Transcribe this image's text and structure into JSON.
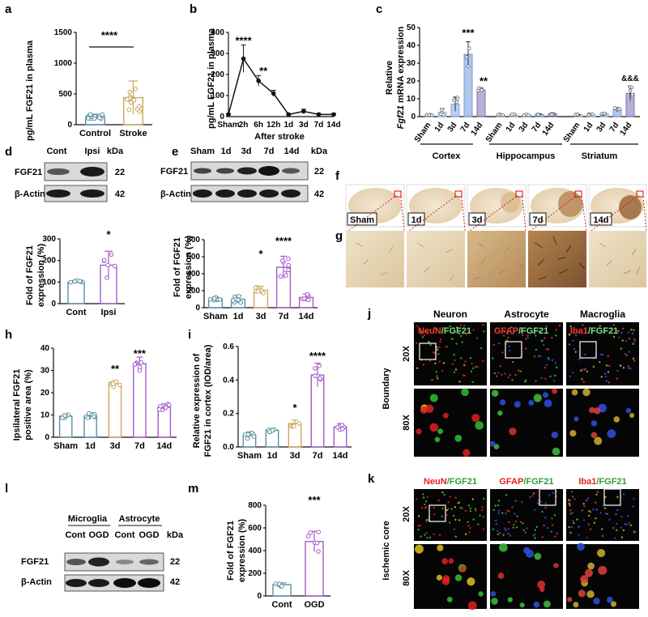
{
  "panels": {
    "a": {
      "letter": "a",
      "ylabel": "pg/mL FGF21 in plasma",
      "yticks": [
        "0",
        "500",
        "1000",
        "1500"
      ],
      "categories": [
        "Control",
        "Stroke"
      ],
      "sig": "****"
    },
    "b": {
      "letter": "b",
      "ylabel": "pg/mL FGF21 in plasma",
      "xlabel": "After stroke",
      "yticks": [
        "0",
        "100",
        "200",
        "300",
        "400"
      ],
      "categories": [
        "Sham",
        "2h",
        "6h",
        "12h",
        "1d",
        "3d",
        "7d",
        "14d"
      ],
      "sig": [
        "****",
        "**"
      ]
    },
    "c": {
      "letter": "c",
      "ylabel1": "Relative",
      "ylabel_gene": "Fgf21",
      "ylabel2": "mRNA expression",
      "yticks": [
        "0",
        "10",
        "20",
        "30",
        "40",
        "50"
      ],
      "groups": [
        "Cortex",
        "Hippocampus",
        "Striatum"
      ],
      "categories": [
        "Sham",
        "1d",
        "3d",
        "7d",
        "14d"
      ],
      "sig": [
        "***",
        "**",
        "&&&"
      ]
    },
    "d": {
      "letter": "d",
      "blot_cols": [
        "Cont",
        "Ipsi"
      ],
      "kda_label": "kDa",
      "rows": [
        {
          "name": "FGF21",
          "kda": "22"
        },
        {
          "name": "β-Actin",
          "kda": "42"
        }
      ],
      "ylabel1": "Fold of FGF21",
      "ylabel2": "expression (%)",
      "yticks": [
        "0",
        "100",
        "200",
        "300"
      ],
      "categories": [
        "Cont",
        "Ipsi"
      ],
      "sig": "*"
    },
    "e": {
      "letter": "e",
      "blot_cols": [
        "Sham",
        "1d",
        "3d",
        "7d",
        "14d"
      ],
      "kda_label": "kDa",
      "rows": [
        {
          "name": "FGF21",
          "kda": "22"
        },
        {
          "name": "β-Actin",
          "kda": "42"
        }
      ],
      "ylabel1": "Fold of FGF21",
      "ylabel2": "expression (%)",
      "yticks": [
        "0",
        "200",
        "400",
        "600",
        "800"
      ],
      "categories": [
        "Sham",
        "1d",
        "3d",
        "7d",
        "14d"
      ],
      "sig": [
        "*",
        "****"
      ]
    },
    "f": {
      "letter": "f",
      "labels": [
        "Sham",
        "1d",
        "3d",
        "7d",
        "14d"
      ]
    },
    "g": {
      "letter": "g"
    },
    "h": {
      "letter": "h",
      "ylabel1": "Ipsilateral FGF21",
      "ylabel2": "positive area (%)",
      "yticks": [
        "0",
        "10",
        "20",
        "30",
        "40"
      ],
      "categories": [
        "Sham",
        "1d",
        "3d",
        "7d",
        "14d"
      ],
      "sig": [
        "**",
        "***"
      ]
    },
    "i": {
      "letter": "i",
      "ylabel1": "Relative expression of",
      "ylabel2": "FGF21 in cortex (IOD/area)",
      "yticks": [
        "0.0",
        "0.2",
        "0.4",
        "0.6"
      ],
      "categories": [
        "Sham",
        "1d",
        "3d",
        "7d",
        "14d"
      ],
      "sig": [
        "*",
        "****"
      ]
    },
    "j": {
      "letter": "j",
      "cols": [
        "Neuron",
        "Astrocyte",
        "Macroglia"
      ],
      "row_group": "Boundary",
      "rows": [
        "20X",
        "80X"
      ],
      "stains": [
        [
          "NeuN",
          "/FGF21"
        ],
        [
          "GFAP",
          "/FGF21"
        ],
        [
          "Iba1",
          "/FGF21"
        ]
      ]
    },
    "k": {
      "letter": "k",
      "row_group": "Ischemic core",
      "rows": [
        "20X",
        "80X"
      ],
      "stains": [
        [
          "NeuN",
          "/FGF21"
        ],
        [
          "GFAP",
          "/FGF21"
        ],
        [
          "Iba1",
          "/FGF21"
        ]
      ]
    },
    "l": {
      "letter": "l",
      "groups": [
        "Microglia",
        "Astrocyte"
      ],
      "cols": [
        "Cont",
        "OGD",
        "Cont",
        "OGD"
      ],
      "kda_label": "kDa",
      "rows": [
        {
          "name": "FGF21",
          "kda": "22"
        },
        {
          "name": "β-Actin",
          "kda": "42"
        }
      ]
    },
    "m": {
      "letter": "m",
      "ylabel1": "Fold of FGF21",
      "ylabel2": "expression (%)",
      "yticks": [
        "0",
        "200",
        "400",
        "600",
        "800"
      ],
      "categories": [
        "Cont",
        "OGD"
      ],
      "sig": "***"
    }
  },
  "chart_data": [
    {
      "panel": "a",
      "type": "bar",
      "categories": [
        "Control",
        "Stroke"
      ],
      "values": [
        130,
        440
      ],
      "errors": [
        40,
        270
      ],
      "ylim": [
        0,
        1500
      ],
      "colors": [
        "#5b8fa3",
        "#c9a85a"
      ]
    },
    {
      "panel": "b",
      "type": "line",
      "categories": [
        "Sham",
        "2h",
        "6h",
        "12h",
        "1d",
        "3d",
        "7d",
        "14d"
      ],
      "values": [
        10,
        275,
        170,
        110,
        10,
        25,
        10,
        10
      ],
      "errors": [
        5,
        65,
        25,
        15,
        5,
        10,
        5,
        5
      ],
      "ylim": [
        0,
        400
      ]
    },
    {
      "panel": "c",
      "type": "bar",
      "categories": [
        "Sham",
        "1d",
        "3d",
        "7d",
        "14d"
      ],
      "series": [
        {
          "name": "Cortex",
          "values": [
            1,
            2.5,
            7,
            35,
            15
          ],
          "errors": [
            0.3,
            2,
            4,
            7,
            1
          ]
        },
        {
          "name": "Hippocampus",
          "values": [
            1,
            1,
            1,
            1.2,
            1.6
          ],
          "errors": [
            0.2,
            0.3,
            0.3,
            0.4,
            0.5
          ]
        },
        {
          "name": "Striatum",
          "values": [
            1,
            1.2,
            1.5,
            4,
            13
          ],
          "errors": [
            0.2,
            0.3,
            0.4,
            1,
            4
          ]
        }
      ],
      "ylim": [
        0,
        50
      ]
    },
    {
      "panel": "d",
      "type": "bar",
      "categories": [
        "Cont",
        "Ipsi"
      ],
      "values": [
        100,
        178
      ],
      "errors": [
        8,
        65
      ],
      "ylim": [
        0,
        300
      ],
      "colors": [
        "#5b8fa3",
        "#a45ac9"
      ]
    },
    {
      "panel": "e",
      "type": "bar",
      "categories": [
        "Sham",
        "1d",
        "3d",
        "7d",
        "14d"
      ],
      "values": [
        105,
        100,
        205,
        475,
        120
      ],
      "errors": [
        20,
        45,
        45,
        130,
        40
      ],
      "ylim": [
        0,
        800
      ],
      "colors": [
        "#5b8fa3",
        "#5b8fa3",
        "#c9a85a",
        "#a45ac9",
        "#a45ac9"
      ]
    },
    {
      "panel": "h",
      "type": "bar",
      "categories": [
        "Sham",
        "1d",
        "3d",
        "7d",
        "14d"
      ],
      "values": [
        9.5,
        9.5,
        24,
        33,
        13.5
      ],
      "errors": [
        1,
        1.5,
        1.5,
        3,
        1.5
      ],
      "ylim": [
        0,
        40
      ],
      "colors": [
        "#5b8fa3",
        "#5b8fa3",
        "#c9a85a",
        "#a45ac9",
        "#a45ac9"
      ]
    },
    {
      "panel": "i",
      "type": "bar",
      "categories": [
        "Sham",
        "1d",
        "3d",
        "7d",
        "14d"
      ],
      "values": [
        0.07,
        0.1,
        0.14,
        0.43,
        0.12
      ],
      "errors": [
        0.02,
        0.01,
        0.02,
        0.07,
        0.02
      ],
      "ylim": [
        0,
        0.6
      ],
      "colors": [
        "#5b8fa3",
        "#5b8fa3",
        "#c9a85a",
        "#a45ac9",
        "#a45ac9"
      ]
    },
    {
      "panel": "m",
      "type": "bar",
      "categories": [
        "Cont",
        "OGD"
      ],
      "values": [
        100,
        480
      ],
      "errors": [
        15,
        90
      ],
      "ylim": [
        0,
        800
      ],
      "colors": [
        "#5b8fa3",
        "#a45ac9"
      ]
    }
  ]
}
